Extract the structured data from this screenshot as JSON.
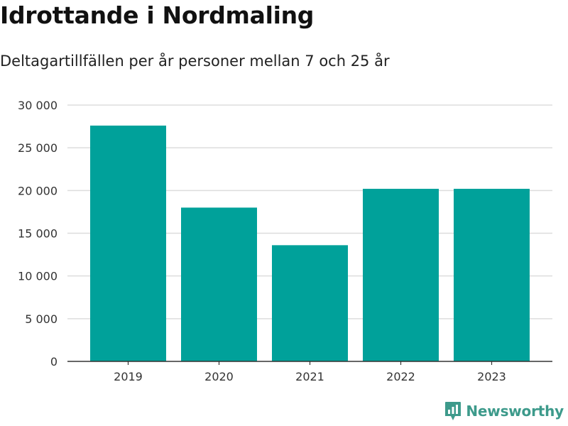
{
  "header": {
    "title": "Idrottande i Nordmaling",
    "subtitle": "Deltagartillfällen per år personer mellan 7 och 25 år"
  },
  "brand": {
    "name": "Newsworthy",
    "icon": "newsworthy-logo-icon",
    "color": "#3d9a8b"
  },
  "chart_data": {
    "type": "bar",
    "title": "Idrottande i Nordmaling",
    "subtitle": "Deltagartillfällen per år personer mellan 7 och 25 år",
    "xlabel": "",
    "ylabel": "",
    "categories": [
      "2019",
      "2020",
      "2021",
      "2022",
      "2023"
    ],
    "values": [
      27600,
      18000,
      13600,
      20200,
      20200
    ],
    "ylim": [
      0,
      30000
    ],
    "yticks": [
      0,
      5000,
      10000,
      15000,
      20000,
      25000,
      30000
    ],
    "ytick_labels": [
      "0",
      "5 000",
      "10 000",
      "15 000",
      "20 000",
      "25 000",
      "30 000"
    ],
    "grid": true,
    "legend": "none",
    "bar_color": "#00a19a",
    "grid_color": "#dddddd",
    "axis_color": "#333333"
  }
}
